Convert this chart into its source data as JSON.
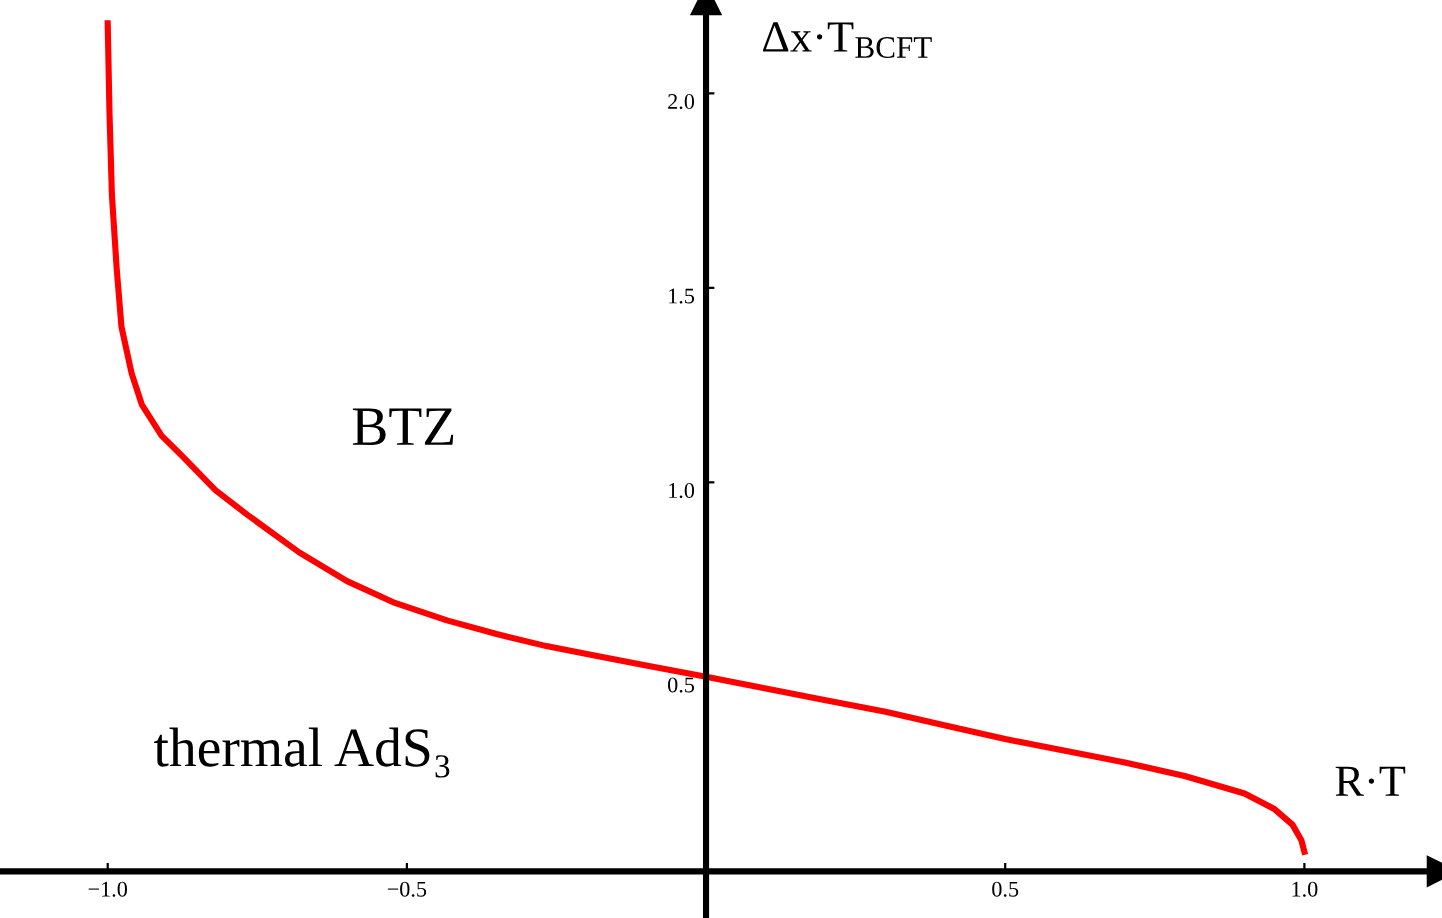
{
  "chart_data": {
    "type": "line",
    "xlabel": "R·T",
    "ylabel": "Δx·T$_{BCFT}$",
    "annotations": [
      "BTZ",
      "thermal AdS₃"
    ],
    "x": [
      -1.0,
      -0.997,
      -0.993,
      -0.985,
      -0.977,
      -0.96,
      -0.943,
      -0.91,
      -0.877,
      -0.82,
      -0.767,
      -0.68,
      -0.6,
      -0.52,
      -0.433,
      -0.35,
      -0.267,
      -0.18,
      -0.1,
      0.0,
      0.1,
      0.2,
      0.3,
      0.4,
      0.5,
      0.6,
      0.7,
      0.8,
      0.9,
      0.95,
      0.98,
      0.995,
      1.0
    ],
    "series": [
      {
        "color": "#ff0000",
        "values": [
          2.18,
          1.95,
          1.74,
          1.55,
          1.4,
          1.28,
          1.2,
          1.12,
          1.07,
          0.98,
          0.917,
          0.82,
          0.746,
          0.69,
          0.645,
          0.61,
          0.579,
          0.553,
          0.529,
          0.5,
          0.47,
          0.44,
          0.41,
          0.375,
          0.34,
          0.31,
          0.28,
          0.245,
          0.2,
          0.16,
          0.12,
          0.08,
          0.05
        ]
      }
    ],
    "xlim": [
      -1.18,
      1.23
    ],
    "ylim": [
      -0.12,
      2.24
    ],
    "xticks": [
      {
        "value": -1.0,
        "label": "−1.0"
      },
      {
        "value": -0.5,
        "label": "−0.5"
      },
      0.5,
      {
        "value": 1.0,
        "label": "1.0"
      }
    ],
    "yticks": [
      0.5,
      {
        "value": 1.0,
        "label": "1.0"
      },
      1.5,
      {
        "value": 2.0,
        "label": "2.0"
      }
    ],
    "grid": false,
    "legend": false,
    "line_style": "solid",
    "marker": "none"
  }
}
